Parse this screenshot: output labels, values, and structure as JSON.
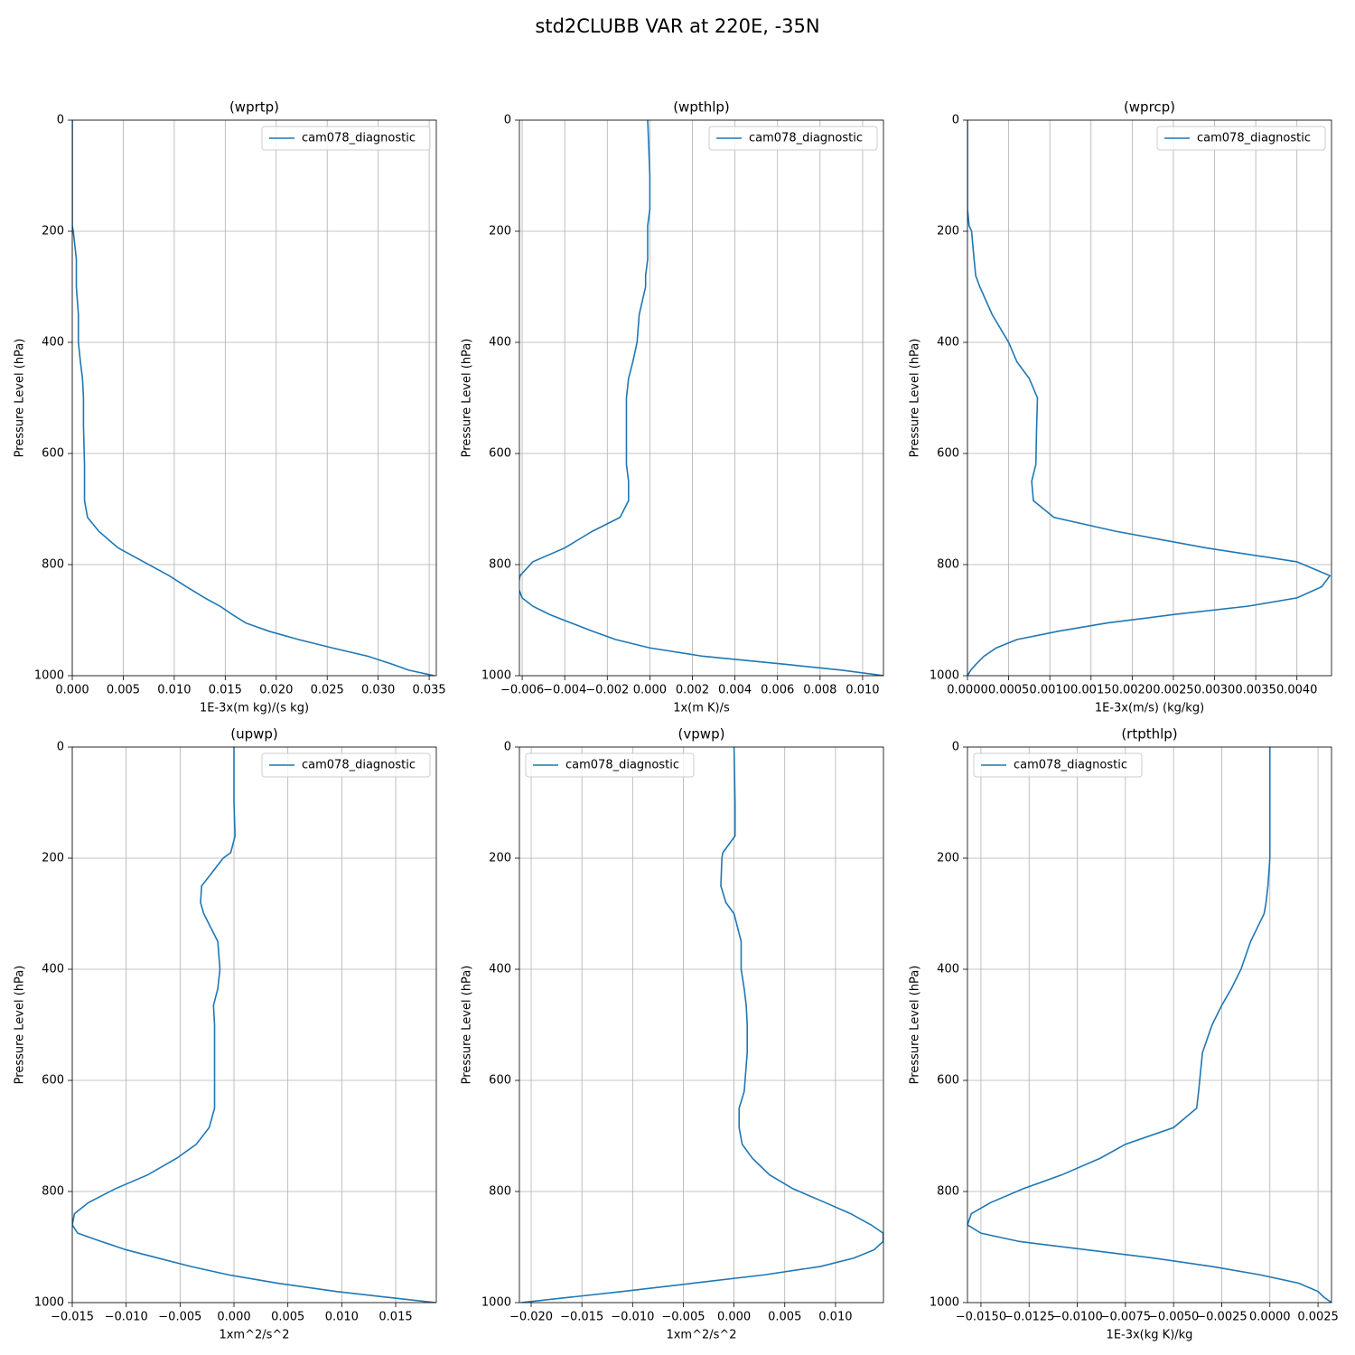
{
  "title": "std2CLUBB VAR at 220E, -35N",
  "chart_data": [
    {
      "type": "line",
      "title": "(wprtp)",
      "xlabel": "1E-3x(m kg)/(s kg)",
      "ylabel": "Pressure Level (hPa)",
      "legend": "upper right",
      "grid": true,
      "y": [
        0,
        100,
        160,
        190,
        200,
        250,
        280,
        300,
        350,
        400,
        435,
        465,
        500,
        550,
        620,
        650,
        685,
        715,
        740,
        770,
        795,
        820,
        840,
        860,
        875,
        890,
        905,
        920,
        935,
        950,
        965,
        980,
        990,
        1000
      ],
      "series": [
        {
          "name": "cam078_diagnostic",
          "color": "#1f77b4",
          "values": [
            0,
            0,
            0,
            0,
            0.0001,
            0.0004,
            0.0004,
            0.0004,
            0.0006,
            0.0006,
            0.0008,
            0.001,
            0.0011,
            0.0011,
            0.0012,
            0.0012,
            0.0012,
            0.0015,
            0.0026,
            0.0045,
            0.007,
            0.0095,
            0.0112,
            0.013,
            0.0145,
            0.0157,
            0.017,
            0.0193,
            0.0222,
            0.0255,
            0.029,
            0.0315,
            0.033,
            0.0355
          ]
        }
      ],
      "xlim": [
        0,
        0.0357
      ],
      "ylim": [
        1000,
        0
      ],
      "xticks": [
        {
          "value": 0,
          "label": "0.000"
        },
        {
          "value": 0.005,
          "label": "0.005"
        },
        {
          "value": 0.01,
          "label": "0.010"
        },
        {
          "value": 0.015,
          "label": "0.015"
        },
        {
          "value": 0.02,
          "label": "0.020"
        },
        {
          "value": 0.025,
          "label": "0.025"
        },
        {
          "value": 0.03,
          "label": "0.030"
        },
        {
          "value": 0.035,
          "label": "0.035"
        }
      ],
      "yticks": [
        0,
        200,
        400,
        600,
        800,
        1000
      ]
    },
    {
      "type": "line",
      "title": "(wpthlp)",
      "xlabel": "1x(m K)/s",
      "ylabel": "Pressure Level (hPa)",
      "legend": "upper right",
      "grid": true,
      "y": [
        0,
        100,
        160,
        190,
        200,
        250,
        280,
        300,
        350,
        400,
        435,
        465,
        500,
        550,
        620,
        650,
        685,
        715,
        740,
        770,
        795,
        820,
        840,
        860,
        875,
        890,
        905,
        920,
        935,
        950,
        965,
        980,
        990,
        1000
      ],
      "series": [
        {
          "name": "cam078_diagnostic",
          "color": "#1f77b4",
          "values": [
            -0.0001,
            0,
            0,
            -0.0001,
            -0.0001,
            -0.0001,
            -0.0002,
            -0.0002,
            -0.0005,
            -0.0006,
            -0.0008,
            -0.001,
            -0.0011,
            -0.0011,
            -0.0011,
            -0.001,
            -0.001,
            -0.0014,
            -0.0027,
            -0.004,
            -0.0055,
            -0.0061,
            -0.0062,
            -0.006,
            -0.0055,
            -0.0047,
            -0.0037,
            -0.0027,
            -0.0016,
            0,
            0.0025,
            0.0065,
            0.009,
            0.011
          ]
        }
      ],
      "xlim": [
        -0.00613,
        0.01098
      ],
      "ylim": [
        1000,
        0
      ],
      "xticks": [
        {
          "value": -0.006,
          "label": "−0.006"
        },
        {
          "value": -0.004,
          "label": "−0.004"
        },
        {
          "value": -0.002,
          "label": "−0.002"
        },
        {
          "value": 0,
          "label": "0.000"
        },
        {
          "value": 0.002,
          "label": "0.002"
        },
        {
          "value": 0.004,
          "label": "0.004"
        },
        {
          "value": 0.006,
          "label": "0.006"
        },
        {
          "value": 0.008,
          "label": "0.008"
        },
        {
          "value": 0.01,
          "label": "0.010"
        }
      ],
      "yticks": [
        0,
        200,
        400,
        600,
        800,
        1000
      ]
    },
    {
      "type": "line",
      "title": "(wprcp)",
      "xlabel": "1E-3x(m/s) (kg/kg)",
      "ylabel": "Pressure Level (hPa)",
      "legend": "upper right",
      "grid": true,
      "y": [
        0,
        100,
        160,
        190,
        200,
        250,
        280,
        300,
        350,
        400,
        435,
        465,
        500,
        550,
        620,
        650,
        685,
        715,
        740,
        770,
        795,
        820,
        840,
        860,
        875,
        890,
        905,
        920,
        935,
        950,
        965,
        980,
        990,
        1000
      ],
      "series": [
        {
          "name": "cam078_diagnostic",
          "color": "#1f77b4",
          "values": [
            0,
            0,
            0,
            2e-05,
            5e-05,
            8e-05,
            0.0001,
            0.00015,
            0.0003,
            0.0005,
            0.0006,
            0.00075,
            0.00085,
            0.00084,
            0.00083,
            0.00078,
            0.0008,
            0.00105,
            0.0018,
            0.0029,
            0.004,
            0.0044,
            0.0043,
            0.004,
            0.0034,
            0.0025,
            0.0017,
            0.0011,
            0.0006,
            0.00035,
            0.0002,
            0.0001,
            4e-05,
            0
          ]
        }
      ],
      "xlim": [
        0,
        0.00442
      ],
      "ylim": [
        1000,
        0
      ],
      "xticks": [
        {
          "value": 0,
          "label": "0.0000"
        },
        {
          "value": 0.0005,
          "label": "0.0005"
        },
        {
          "value": 0.001,
          "label": "0.0010"
        },
        {
          "value": 0.0015,
          "label": "0.0015"
        },
        {
          "value": 0.002,
          "label": "0.0020"
        },
        {
          "value": 0.0025,
          "label": "0.0025"
        },
        {
          "value": 0.003,
          "label": "0.0030"
        },
        {
          "value": 0.0035,
          "label": "0.0035"
        },
        {
          "value": 0.004,
          "label": "0.0040"
        }
      ],
      "yticks": [
        0,
        200,
        400,
        600,
        800,
        1000
      ]
    },
    {
      "type": "line",
      "title": "(upwp)",
      "xlabel": "1xm^2/s^2",
      "ylabel": "Pressure Level (hPa)",
      "legend": "upper right",
      "grid": true,
      "y": [
        0,
        100,
        160,
        190,
        200,
        250,
        280,
        300,
        350,
        400,
        435,
        465,
        500,
        550,
        620,
        650,
        685,
        715,
        740,
        770,
        795,
        820,
        840,
        860,
        875,
        890,
        905,
        920,
        935,
        950,
        965,
        980,
        990,
        1000
      ],
      "series": [
        {
          "name": "cam078_diagnostic",
          "color": "#1f77b4",
          "values": [
            0,
            0,
            0.0001,
            -0.0003,
            -0.001,
            -0.003,
            -0.0031,
            -0.0028,
            -0.0015,
            -0.0013,
            -0.0015,
            -0.0019,
            -0.0018,
            -0.0018,
            -0.0018,
            -0.0018,
            -0.0023,
            -0.0035,
            -0.0053,
            -0.008,
            -0.011,
            -0.0135,
            -0.0148,
            -0.015,
            -0.0145,
            -0.0123,
            -0.01,
            -0.007,
            -0.004,
            -0.0005,
            0.004,
            0.0095,
            0.014,
            0.0187
          ]
        }
      ],
      "xlim": [
        -0.015,
        0.01877
      ],
      "ylim": [
        1000,
        0
      ],
      "xticks": [
        {
          "value": -0.015,
          "label": "−0.015"
        },
        {
          "value": -0.01,
          "label": "−0.010"
        },
        {
          "value": -0.005,
          "label": "−0.005"
        },
        {
          "value": 0,
          "label": "0.000"
        },
        {
          "value": 0.005,
          "label": "0.005"
        },
        {
          "value": 0.01,
          "label": "0.010"
        },
        {
          "value": 0.015,
          "label": "0.015"
        }
      ],
      "yticks": [
        0,
        200,
        400,
        600,
        800,
        1000
      ]
    },
    {
      "type": "line",
      "title": "(vpwp)",
      "xlabel": "1xm^2/s^2",
      "ylabel": "Pressure Level (hPa)",
      "legend": "upper left",
      "grid": true,
      "y": [
        0,
        100,
        160,
        190,
        200,
        250,
        280,
        300,
        350,
        400,
        435,
        465,
        500,
        550,
        620,
        650,
        685,
        715,
        740,
        770,
        795,
        820,
        840,
        860,
        875,
        890,
        905,
        920,
        935,
        950,
        965,
        980,
        990,
        1000
      ],
      "series": [
        {
          "name": "cam078_diagnostic",
          "color": "#1f77b4",
          "values": [
            0,
            0.0001,
            0.0001,
            -0.0011,
            -0.0012,
            -0.0013,
            -0.0008,
            0,
            0.0007,
            0.0007,
            0.001,
            0.0012,
            0.0013,
            0.0013,
            0.001,
            0.0005,
            0.0005,
            0.0008,
            0.0018,
            0.0035,
            0.0058,
            0.009,
            0.0115,
            0.0135,
            0.0147,
            0.0147,
            0.0138,
            0.0118,
            0.0085,
            0.003,
            -0.004,
            -0.011,
            -0.016,
            -0.021
          ]
        }
      ],
      "xlim": [
        -0.02116,
        0.01473
      ],
      "ylim": [
        1000,
        0
      ],
      "xticks": [
        {
          "value": -0.02,
          "label": "−0.020"
        },
        {
          "value": -0.015,
          "label": "−0.015"
        },
        {
          "value": -0.01,
          "label": "−0.010"
        },
        {
          "value": -0.005,
          "label": "−0.005"
        },
        {
          "value": 0,
          "label": "0.000"
        },
        {
          "value": 0.005,
          "label": "0.005"
        },
        {
          "value": 0.01,
          "label": "0.010"
        }
      ],
      "yticks": [
        0,
        200,
        400,
        600,
        800,
        1000
      ]
    },
    {
      "type": "line",
      "title": "(rtpthlp)",
      "xlabel": "1E-3x(kg K)/kg",
      "ylabel": "Pressure Level (hPa)",
      "legend": "upper left",
      "grid": true,
      "y": [
        0,
        100,
        160,
        190,
        200,
        250,
        280,
        300,
        350,
        400,
        435,
        465,
        500,
        550,
        620,
        650,
        685,
        715,
        740,
        770,
        795,
        820,
        840,
        860,
        875,
        890,
        905,
        920,
        935,
        950,
        965,
        980,
        990,
        1000
      ],
      "series": [
        {
          "name": "cam078_diagnostic",
          "color": "#1f77b4",
          "values": [
            0,
            0,
            0,
            0,
            0,
            -0.0001,
            -0.0002,
            -0.0003,
            -0.001,
            -0.0015,
            -0.002,
            -0.0025,
            -0.003,
            -0.0035,
            -0.0037,
            -0.0038,
            -0.005,
            -0.0075,
            -0.0088,
            -0.0108,
            -0.0128,
            -0.0145,
            -0.0155,
            -0.0157,
            -0.015,
            -0.013,
            -0.0095,
            -0.006,
            -0.003,
            -0.0005,
            0.0015,
            0.0025,
            0.0028,
            0.0032
          ]
        }
      ],
      "xlim": [
        -0.0157,
        0.0032
      ],
      "ylim": [
        1000,
        0
      ],
      "xticks": [
        {
          "value": -0.015,
          "label": "−0.0150"
        },
        {
          "value": -0.0125,
          "label": "−0.0125"
        },
        {
          "value": -0.01,
          "label": "−0.0100"
        },
        {
          "value": -0.0075,
          "label": "−0.0075"
        },
        {
          "value": -0.005,
          "label": "−0.0050"
        },
        {
          "value": -0.0025,
          "label": "−0.0025"
        },
        {
          "value": 0,
          "label": "0.0000"
        },
        {
          "value": 0.0025,
          "label": "0.0025"
        }
      ],
      "yticks": [
        0,
        200,
        400,
        600,
        800,
        1000
      ]
    }
  ]
}
